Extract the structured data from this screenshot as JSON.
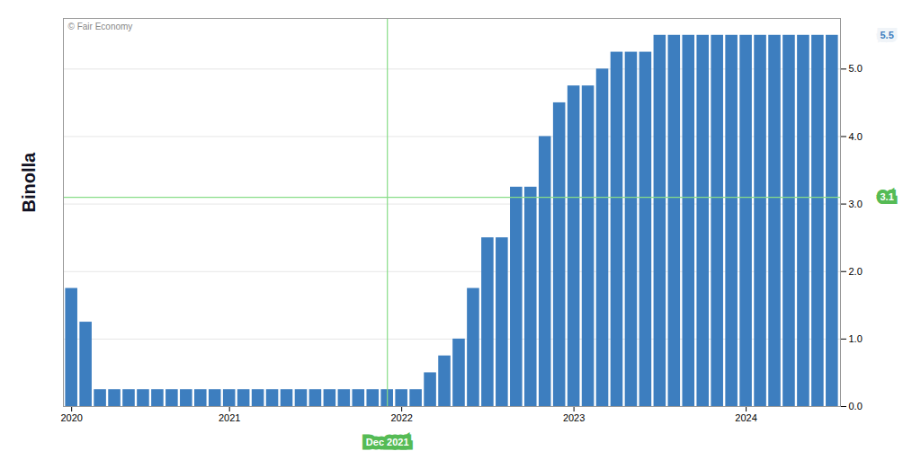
{
  "chart_data": {
    "type": "bar",
    "categories": [
      "2020",
      null,
      null,
      null,
      null,
      null,
      null,
      null,
      null,
      null,
      null,
      "2021",
      null,
      null,
      null,
      null,
      null,
      null,
      null,
      null,
      null,
      null,
      null,
      "2022",
      null,
      null,
      null,
      null,
      null,
      null,
      null,
      null,
      null,
      null,
      null,
      "2023",
      null,
      null,
      null,
      null,
      null,
      null,
      null,
      null,
      null,
      null,
      null,
      "2024",
      null,
      null,
      null,
      null,
      null,
      null
    ],
    "values": [
      1.75,
      1.25,
      0.25,
      0.25,
      0.25,
      0.25,
      0.25,
      0.25,
      0.25,
      0.25,
      0.25,
      0.25,
      0.25,
      0.25,
      0.25,
      0.25,
      0.25,
      0.25,
      0.25,
      0.25,
      0.25,
      0.25,
      0.25,
      0.25,
      0.25,
      0.5,
      0.75,
      1.0,
      1.75,
      2.5,
      2.5,
      3.25,
      3.25,
      4.0,
      4.5,
      4.75,
      4.75,
      5.0,
      5.25,
      5.25,
      5.25,
      5.5,
      5.5,
      5.5,
      5.5,
      5.5,
      5.5,
      5.5,
      5.5,
      5.5,
      5.5,
      5.5,
      5.5,
      5.5
    ],
    "color": "#3d7ebf",
    "ylim": [
      0,
      5.75
    ],
    "yticks": [
      {
        "value": 0.0,
        "label": "0.0"
      },
      {
        "value": 1.0,
        "label": "1.0"
      },
      {
        "value": 2.0,
        "label": "2.0"
      },
      {
        "value": 3.0,
        "label": "3.0"
      },
      {
        "value": 4.0,
        "label": "4.0"
      },
      {
        "value": 5.0,
        "label": "5.0"
      }
    ],
    "grid": true,
    "annotations": [
      {
        "text": "© Fair Economy"
      },
      {
        "text": "Binolla",
        "color": "#111122"
      },
      {
        "text": "5.5",
        "y": 5.5,
        "color": "#3d7ebf"
      },
      {
        "text": "3.1",
        "y": 3.1,
        "color": "#55bb55"
      },
      {
        "text": "Dec 2021",
        "x": 22,
        "color": "#55bb55"
      }
    ],
    "reference_lines": [
      {
        "y": 3.1,
        "color": "#88dd88"
      },
      {
        "x": 22,
        "color": "#88dd88"
      }
    ]
  }
}
